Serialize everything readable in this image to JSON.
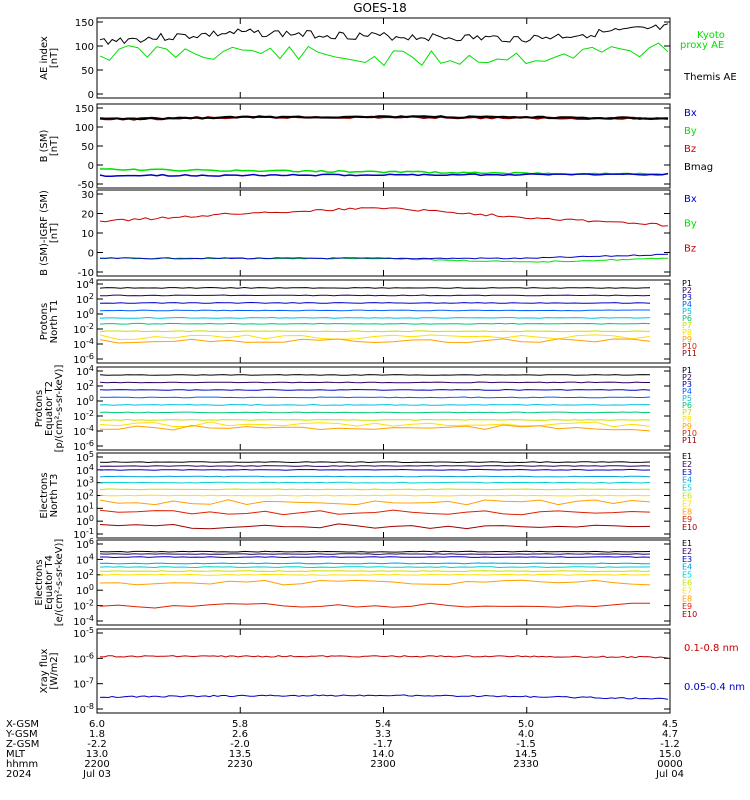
{
  "title": "GOES-18",
  "colors": {
    "black": "#000000",
    "green": "#00e000",
    "blue": "#0000c8",
    "red": "#c80000",
    "darkred": "#8b0000"
  },
  "panels": [
    {
      "id": "ae",
      "ylabel": [
        "AE index",
        "[nT]"
      ],
      "yticks": [
        "150",
        "100",
        "50",
        "0"
      ],
      "legend": [
        {
          "text": "Kyoto",
          "color": "#00e000"
        },
        {
          "text": "proxy AE",
          "color": "#00e000"
        },
        {
          "text": "Themis AE",
          "color": "#000000"
        }
      ]
    },
    {
      "id": "bsm",
      "ylabel": [
        "B (SM)",
        "[nT]"
      ],
      "yticks": [
        "150",
        "100",
        "50",
        "0",
        "-50"
      ],
      "legend": [
        {
          "text": "Bx",
          "color": "#0000c8"
        },
        {
          "text": "By",
          "color": "#00e000"
        },
        {
          "text": "Bz",
          "color": "#c80000"
        },
        {
          "text": "Bmag",
          "color": "#000000"
        }
      ]
    },
    {
      "id": "bigrf",
      "ylabel": [
        "B (SM)-IGRF (SM)",
        "[nT]"
      ],
      "yticks": [
        "30",
        "20",
        "10",
        "0",
        "-10"
      ],
      "legend": [
        {
          "text": "Bx",
          "color": "#0000c8"
        },
        {
          "text": "By",
          "color": "#00e000"
        },
        {
          "text": "Bz",
          "color": "#c80000"
        }
      ]
    },
    {
      "id": "pn",
      "ylabel": [
        "Protons",
        "North T1"
      ],
      "yticks": [
        "10^4",
        "10^2",
        "10^0",
        "10^-2",
        "10^-4",
        "10^-6"
      ],
      "legend": [
        {
          "text": "P1",
          "color": "#000000"
        },
        {
          "text": "P2",
          "color": "#2a0060"
        },
        {
          "text": "P3",
          "color": "#0000c8"
        },
        {
          "text": "P4",
          "color": "#0060ff"
        },
        {
          "text": "P5",
          "color": "#00c0e0"
        },
        {
          "text": "P6",
          "color": "#00c878"
        },
        {
          "text": "P7",
          "color": "#c8e000"
        },
        {
          "text": "P8",
          "color": "#ffe000"
        },
        {
          "text": "P9",
          "color": "#ffa000"
        },
        {
          "text": "P10",
          "color": "#e02000"
        },
        {
          "text": "P11",
          "color": "#a00000"
        }
      ]
    },
    {
      "id": "pe",
      "ylabel": [
        "Protons",
        "Equator T2",
        "[p/(cm²-s-sr-keV)]"
      ],
      "yticks": [
        "10^4",
        "10^2",
        "10^0",
        "10^-2",
        "10^-4",
        "10^-6"
      ],
      "legend": [
        {
          "text": "P1",
          "color": "#000000"
        },
        {
          "text": "P2",
          "color": "#2a0060"
        },
        {
          "text": "P3",
          "color": "#0000c8"
        },
        {
          "text": "P4",
          "color": "#0060ff"
        },
        {
          "text": "P5",
          "color": "#00c0e0"
        },
        {
          "text": "P6",
          "color": "#00c878"
        },
        {
          "text": "P7",
          "color": "#c8e000"
        },
        {
          "text": "P8",
          "color": "#ffe000"
        },
        {
          "text": "P9",
          "color": "#ffa000"
        },
        {
          "text": "P10",
          "color": "#e02000"
        },
        {
          "text": "P11",
          "color": "#a00000"
        }
      ]
    },
    {
      "id": "en",
      "ylabel": [
        "Electrons",
        "North T3"
      ],
      "yticks": [
        "10^5",
        "10^4",
        "10^3",
        "10^2",
        "10^1",
        "10^0",
        "10^-1"
      ],
      "legend": [
        {
          "text": "E1",
          "color": "#000000"
        },
        {
          "text": "E2",
          "color": "#2a0060"
        },
        {
          "text": "E3",
          "color": "#0000c8"
        },
        {
          "text": "E4",
          "color": "#00a0e0"
        },
        {
          "text": "E5",
          "color": "#00d0d0"
        },
        {
          "text": "E6",
          "color": "#c8e000"
        },
        {
          "text": "E7",
          "color": "#ffe000"
        },
        {
          "text": "E8",
          "color": "#ffa000"
        },
        {
          "text": "E9",
          "color": "#e02000"
        },
        {
          "text": "E10",
          "color": "#a00000"
        }
      ]
    },
    {
      "id": "ee",
      "ylabel": [
        "Electrons",
        "Equator T4",
        "[e/(cm²-s-sr-keV)]"
      ],
      "yticks": [
        "10^6",
        "10^4",
        "10^2",
        "10^0",
        "10^-2",
        "10^-4"
      ],
      "legend": [
        {
          "text": "E1",
          "color": "#000000"
        },
        {
          "text": "E2",
          "color": "#2a0060"
        },
        {
          "text": "E3",
          "color": "#0000c8"
        },
        {
          "text": "E4",
          "color": "#00a0e0"
        },
        {
          "text": "E5",
          "color": "#00d0d0"
        },
        {
          "text": "E6",
          "color": "#c8e000"
        },
        {
          "text": "E7",
          "color": "#ffe000"
        },
        {
          "text": "E8",
          "color": "#ffa000"
        },
        {
          "text": "E9",
          "color": "#e02000"
        },
        {
          "text": "E10",
          "color": "#a00000"
        }
      ]
    },
    {
      "id": "xray",
      "ylabel": [
        "Xray flux",
        "[W/m2]"
      ],
      "yticks": [
        "10^-5",
        "10^-6",
        "10^-7",
        "10^-8"
      ],
      "legend": [
        {
          "text": "0.1-0.8 nm",
          "color": "#c80000"
        },
        {
          "text": "0.05-0.4 nm",
          "color": "#0000c8"
        }
      ]
    }
  ],
  "ephemeris": {
    "rows": [
      {
        "label": "X-GSM",
        "values": [
          "6.0",
          "5.8",
          "5.4",
          "5.0",
          "4.5"
        ]
      },
      {
        "label": "Y-GSM",
        "values": [
          "1.8",
          "2.6",
          "3.3",
          "4.0",
          "4.7"
        ]
      },
      {
        "label": "Z-GSM",
        "values": [
          "-2.2",
          "-2.0",
          "-1.7",
          "-1.5",
          "-1.2"
        ]
      },
      {
        "label": "MLT",
        "values": [
          "13.0",
          "13.5",
          "14.0",
          "14.5",
          "15.0"
        ]
      },
      {
        "label": "hhmm",
        "values": [
          "2200",
          "2230",
          "2300",
          "2330",
          "0000"
        ]
      },
      {
        "label": "2024",
        "values": [
          "Jul 03",
          "",
          "",
          "",
          "Jul 04"
        ]
      }
    ]
  },
  "chart_data": [
    {
      "type": "line",
      "title": "GOES-18",
      "ylabel": "AE index [nT]",
      "x": [
        "2200",
        "2230",
        "2300",
        "2330",
        "0000"
      ],
      "ylim": [
        0,
        150
      ],
      "series": [
        {
          "name": "Themis AE",
          "values": [
            110,
            128,
            120,
            115,
            138
          ]
        },
        {
          "name": "Kyoto proxy AE",
          "values": [
            85,
            90,
            72,
            78,
            95
          ]
        }
      ]
    },
    {
      "type": "line",
      "ylabel": "B (SM) [nT]",
      "x": [
        "2200",
        "2230",
        "2300",
        "2330",
        "0000"
      ],
      "ylim": [
        -50,
        150
      ],
      "series": [
        {
          "name": "Bz",
          "values": [
            120,
            125,
            126,
            124,
            122
          ]
        },
        {
          "name": "Bmag",
          "values": [
            121,
            126,
            127,
            125,
            123
          ]
        },
        {
          "name": "By",
          "values": [
            -12,
            -15,
            -18,
            -22,
            -24
          ]
        },
        {
          "name": "Bx",
          "values": [
            -28,
            -27,
            -26,
            -25,
            -24
          ]
        }
      ]
    },
    {
      "type": "line",
      "ylabel": "B (SM)-IGRF (SM) [nT]",
      "x": [
        "2200",
        "2230",
        "2300",
        "2330",
        "0000"
      ],
      "ylim": [
        -10,
        30
      ],
      "series": [
        {
          "name": "Bz",
          "values": [
            16,
            20,
            23,
            18,
            14
          ]
        },
        {
          "name": "By",
          "values": [
            -3,
            -3,
            -3,
            -5,
            -3
          ]
        },
        {
          "name": "Bx",
          "values": [
            -3,
            -3,
            -3,
            -3,
            -1
          ]
        }
      ]
    },
    {
      "type": "line",
      "ylabel": "Protons North T1",
      "x": [
        "2200",
        "2230",
        "2300",
        "2330",
        "0000"
      ],
      "log_scale": true,
      "series": [
        {
          "name": "P1",
          "values": [
            3000,
            3000,
            3000,
            3000,
            3000
          ]
        },
        {
          "name": "P2",
          "values": [
            300,
            300,
            300,
            300,
            300
          ]
        },
        {
          "name": "P3",
          "values": [
            30,
            30,
            30,
            30,
            30
          ]
        },
        {
          "name": "P4",
          "values": [
            3,
            3,
            3,
            3,
            3
          ]
        },
        {
          "name": "P5",
          "values": [
            0.3,
            0.3,
            0.3,
            0.3,
            0.3
          ]
        },
        {
          "name": "P6",
          "values": [
            0.05,
            0.05,
            0.05,
            0.05,
            0.05
          ]
        },
        {
          "name": "P7",
          "values": [
            0.005,
            0.005,
            0.005,
            0.005,
            0.005
          ]
        },
        {
          "name": "P8",
          "values": [
            0.0008,
            0.0008,
            0.0008,
            0.0008,
            0.0008
          ]
        },
        {
          "name": "P9",
          "values": [
            0.0002,
            0.0003,
            0.0002,
            0.0003,
            0.0002
          ]
        }
      ]
    },
    {
      "type": "line",
      "ylabel": "Protons Equator T2 [p/(cm²-s-sr-keV)]",
      "x": [
        "2200",
        "2230",
        "2300",
        "2330",
        "0000"
      ],
      "log_scale": true,
      "series": [
        {
          "name": "P1",
          "values": [
            3000,
            3000,
            3000,
            3000,
            3000
          ]
        },
        {
          "name": "P2",
          "values": [
            300,
            300,
            300,
            300,
            300
          ]
        },
        {
          "name": "P3",
          "values": [
            30,
            30,
            30,
            30,
            30
          ]
        },
        {
          "name": "P4",
          "values": [
            3,
            3,
            3,
            3,
            3
          ]
        },
        {
          "name": "P5",
          "values": [
            0.3,
            0.3,
            0.3,
            0.3,
            0.3
          ]
        },
        {
          "name": "P6",
          "values": [
            0.03,
            0.03,
            0.03,
            0.03,
            0.03
          ]
        },
        {
          "name": "P7",
          "values": [
            0.003,
            0.003,
            0.003,
            0.003,
            0.003
          ]
        },
        {
          "name": "P8",
          "values": [
            0.0008,
            0.0008,
            0.0008,
            0.0008,
            0.0008
          ]
        },
        {
          "name": "P9",
          "values": [
            0.0002,
            0.0003,
            0.0002,
            0.0003,
            0.0002
          ]
        }
      ]
    },
    {
      "type": "line",
      "ylabel": "Electrons North T3",
      "x": [
        "2200",
        "2230",
        "2300",
        "2330",
        "0000"
      ],
      "log_scale": true,
      "series": [
        {
          "name": "E1",
          "values": [
            40000,
            40000,
            40000,
            40000,
            40000
          ]
        },
        {
          "name": "E2",
          "values": [
            20000,
            20000,
            20000,
            20000,
            20000
          ]
        },
        {
          "name": "E3",
          "values": [
            10000,
            10000,
            10000,
            10000,
            10000
          ]
        },
        {
          "name": "E4",
          "values": [
            3000,
            3000,
            3000,
            3000,
            3000
          ]
        },
        {
          "name": "E5",
          "values": [
            1000,
            1000,
            1000,
            1000,
            1000
          ]
        },
        {
          "name": "E6",
          "values": [
            300,
            300,
            300,
            300,
            300
          ]
        },
        {
          "name": "E7",
          "values": [
            100,
            100,
            100,
            100,
            100
          ]
        },
        {
          "name": "E8",
          "values": [
            30,
            30,
            30,
            30,
            30
          ]
        },
        {
          "name": "E9",
          "values": [
            5,
            5,
            5,
            5,
            5
          ]
        },
        {
          "name": "E10",
          "values": [
            0.4,
            0.4,
            0.4,
            0.4,
            0.4
          ]
        }
      ]
    },
    {
      "type": "line",
      "ylabel": "Electrons Equator T4 [e/(cm²-s-sr-keV)]",
      "x": [
        "2200",
        "2230",
        "2300",
        "2330",
        "0000"
      ],
      "log_scale": true,
      "series": [
        {
          "name": "E1",
          "values": [
            100000,
            100000,
            100000,
            100000,
            100000
          ]
        },
        {
          "name": "E2",
          "values": [
            50000,
            50000,
            50000,
            50000,
            50000
          ]
        },
        {
          "name": "E3",
          "values": [
            20000,
            20000,
            20000,
            20000,
            20000
          ]
        },
        {
          "name": "E4",
          "values": [
            3000,
            3000,
            3000,
            3000,
            3000
          ]
        },
        {
          "name": "E5",
          "values": [
            1000,
            1000,
            1000,
            1000,
            1000
          ]
        },
        {
          "name": "E6",
          "values": [
            300,
            300,
            300,
            300,
            300
          ]
        },
        {
          "name": "E7",
          "values": [
            100,
            100,
            100,
            100,
            100
          ]
        },
        {
          "name": "E8",
          "values": [
            10,
            10,
            10,
            10,
            10
          ]
        },
        {
          "name": "E9",
          "values": [
            0.01,
            0.01,
            0.01,
            0.01,
            0.01
          ]
        }
      ]
    },
    {
      "type": "line",
      "ylabel": "Xray flux [W/m2]",
      "x": [
        "2200",
        "2230",
        "2300",
        "2330",
        "0000"
      ],
      "log_scale": true,
      "series": [
        {
          "name": "0.1-0.8 nm",
          "values": [
            1.2e-06,
            1.2e-06,
            1.2e-06,
            1.2e-06,
            1.1e-06
          ]
        },
        {
          "name": "0.05-0.4 nm",
          "values": [
            3e-08,
            3.3e-08,
            3.5e-08,
            3.1e-08,
            2.5e-08
          ]
        }
      ]
    }
  ]
}
